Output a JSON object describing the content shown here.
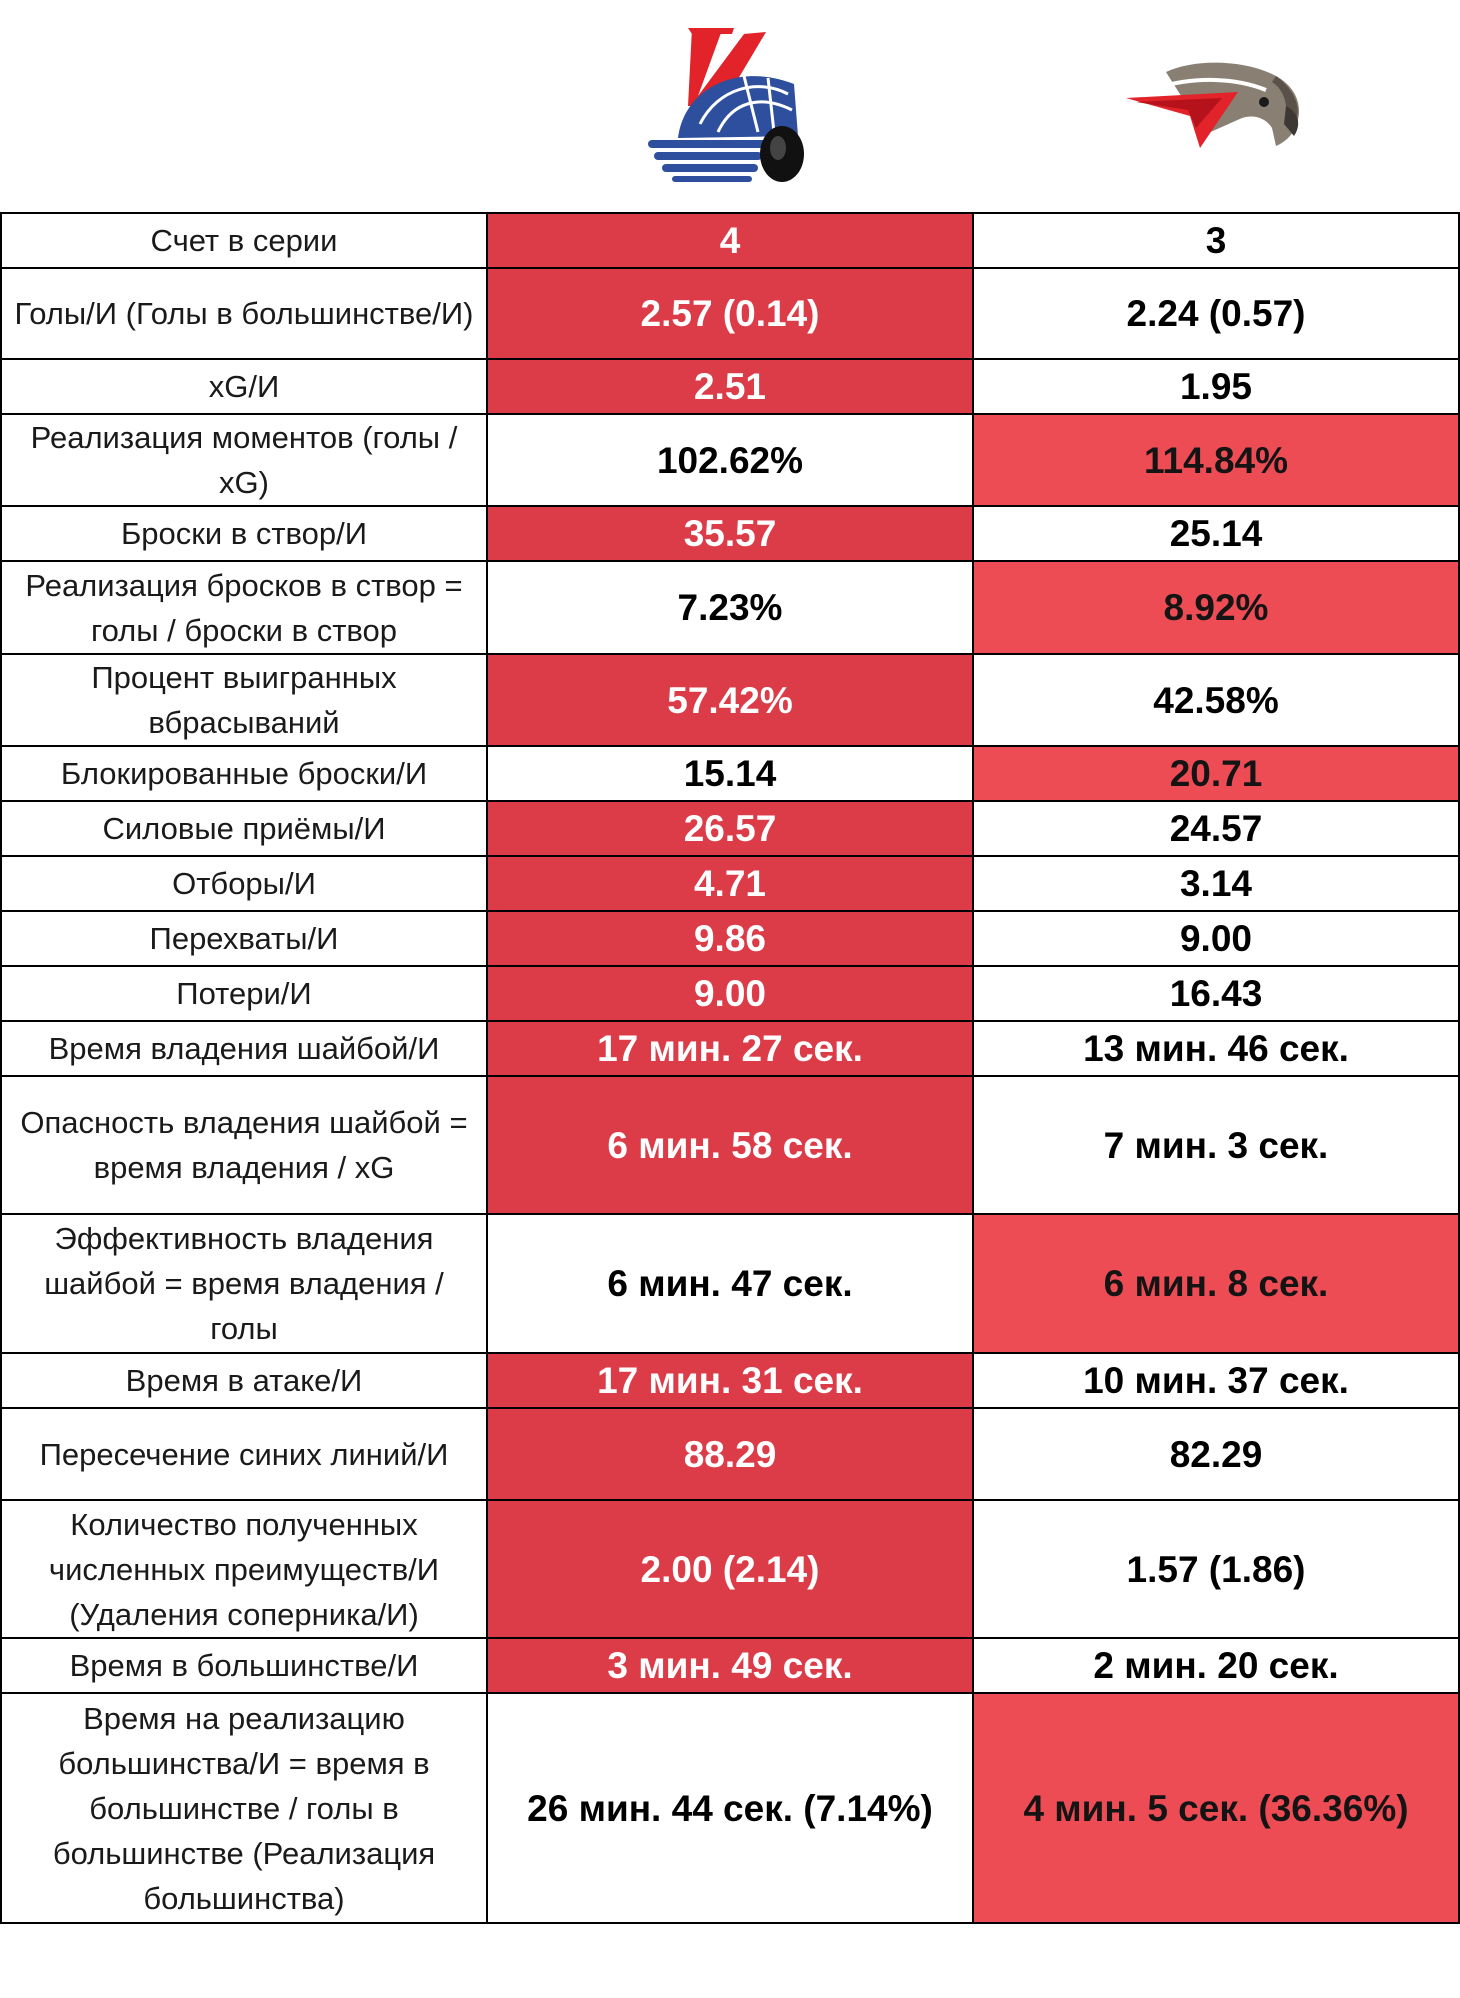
{
  "teams": [
    {
      "logo": "lokomotiv-logo",
      "colors": {
        "primary": "#e2232a",
        "secondary": "#2d4f9e"
      }
    },
    {
      "logo": "avangard-logo",
      "colors": {
        "primary": "#e2232a",
        "secondary": "#8a7f73"
      }
    }
  ],
  "highlight_colors": {
    "leader_dark": "#dc3c48",
    "leader_light": "#ee4c55"
  },
  "rows": [
    {
      "label": "Счет в серии",
      "team1": "4",
      "team2": "3",
      "highlight": "team1",
      "height": 55
    },
    {
      "label": "Голы/И (Голы в большинстве/И)",
      "team1": "2.57 (0.14)",
      "team2": "2.24 (0.57)",
      "highlight": "team1",
      "height": 91
    },
    {
      "label": "xG/И",
      "team1": "2.51",
      "team2": "1.95",
      "highlight": "team1",
      "height": 55
    },
    {
      "label": "Реализация моментов (голы / xG)",
      "team1": "102.62%",
      "team2": "114.84%",
      "highlight": "team2",
      "height": 92
    },
    {
      "label": "Броски в створ/И",
      "team1": "35.57",
      "team2": "25.14",
      "highlight": "team1",
      "height": 55
    },
    {
      "label": "Реализация бросков в створ = голы / броски в створ",
      "team1": "7.23%",
      "team2": "8.92%",
      "highlight": "team2",
      "height": 93
    },
    {
      "label": "Процент выигранных вбрасываний",
      "team1": "57.42%",
      "team2": "42.58%",
      "highlight": "team1",
      "height": 92
    },
    {
      "label": "Блокированные броски/И",
      "team1": "15.14",
      "team2": "20.71",
      "highlight": "team2",
      "height": 55
    },
    {
      "label": "Силовые приёмы/И",
      "team1": "26.57",
      "team2": "24.57",
      "highlight": "team1",
      "height": 55
    },
    {
      "label": "Отборы/И",
      "team1": "4.71",
      "team2": "3.14",
      "highlight": "team1",
      "height": 55
    },
    {
      "label": "Перехваты/И",
      "team1": "9.86",
      "team2": "9.00",
      "highlight": "team1",
      "height": 55
    },
    {
      "label": "Потери/И",
      "team1": "9.00",
      "team2": "16.43",
      "highlight": "team1",
      "height": 55
    },
    {
      "label": "Время владения шайбой/И",
      "team1": "17 мин. 27 сек.",
      "team2": "13 мин. 46 сек.",
      "highlight": "team1",
      "height": 55
    },
    {
      "label": "Опасность владения шайбой = время владения / xG",
      "team1": "6 мин. 58 сек.",
      "team2": "7 мин. 3 сек.",
      "highlight": "team1",
      "height": 138
    },
    {
      "label": "Эффективность владения шайбой = время владения / голы",
      "team1": "6 мин. 47 сек.",
      "team2": "6 мин. 8 сек.",
      "highlight": "team2",
      "height": 139
    },
    {
      "label": "Время в атаке/И",
      "team1": "17 мин. 31 сек.",
      "team2": "10 мин. 37 сек.",
      "highlight": "team1",
      "height": 55
    },
    {
      "label": "Пересечение синих линий/И",
      "team1": "88.29",
      "team2": "82.29",
      "highlight": "team1",
      "height": 92
    },
    {
      "label": "Количество полученных численных преимуществ/И (Удаления соперника/И)",
      "team1": "2.00 (2.14)",
      "team2": "1.57 (1.86)",
      "highlight": "team1",
      "height": 138
    },
    {
      "label": "Время в большинстве/И",
      "team1": "3 мин. 49 сек.",
      "team2": "2 мин. 20 сек.",
      "highlight": "team1",
      "height": 55
    },
    {
      "label": "Время на реализацию большинства/И = время в большинстве / голы в большинстве (Реализация большинства)",
      "team1": "26 мин. 44 сек. (7.14%)",
      "team2": "4 мин. 5 сек. (36.36%)",
      "highlight": "team2",
      "height": 230
    }
  ]
}
